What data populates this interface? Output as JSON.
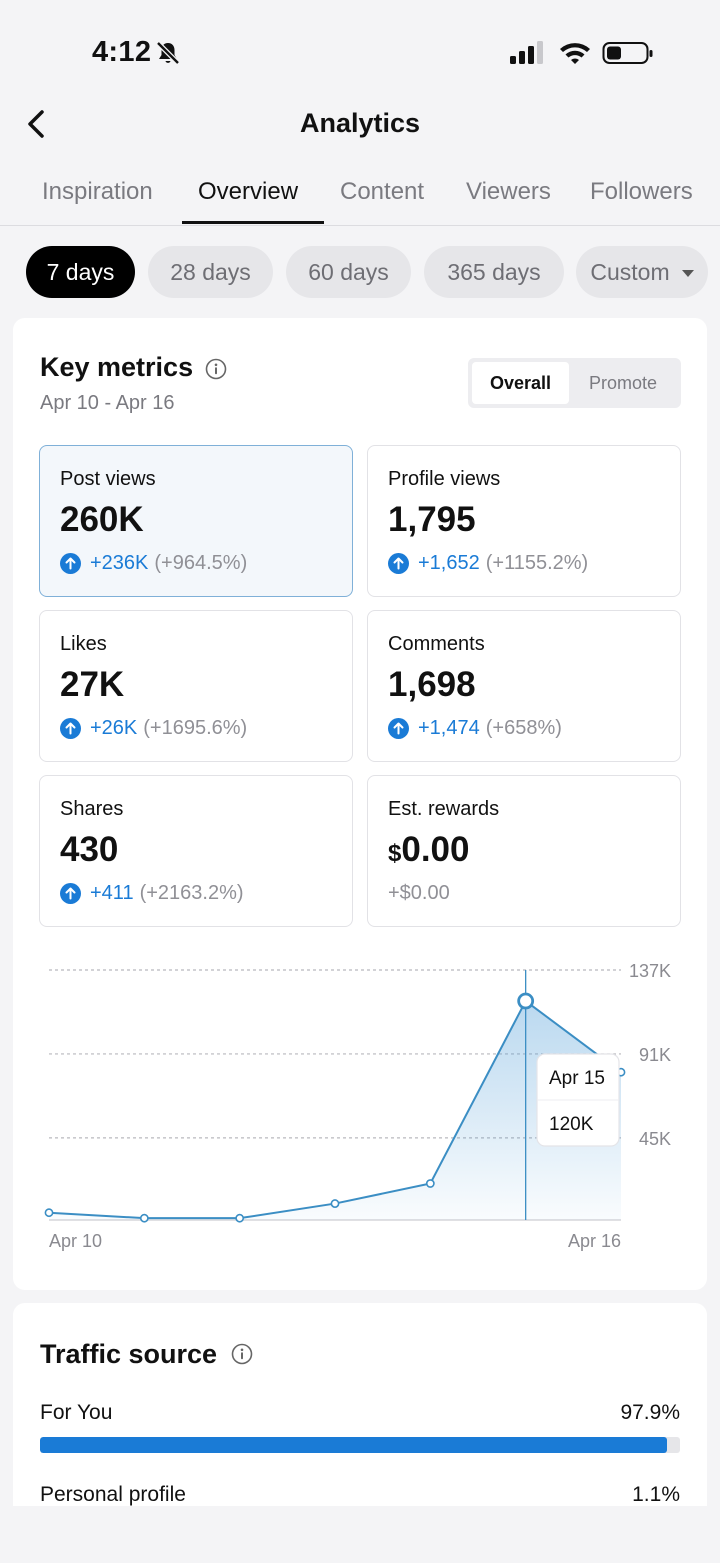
{
  "status": {
    "time": "4:12"
  },
  "nav": {
    "title": "Analytics"
  },
  "tabs": [
    "Inspiration",
    "Overview",
    "Content",
    "Viewers",
    "Followers"
  ],
  "active_tab": "Overview",
  "periods": [
    "7 days",
    "28 days",
    "60 days",
    "365 days",
    "Custom"
  ],
  "active_period": "7 days",
  "key_metrics": {
    "title": "Key metrics",
    "date_range": "Apr 10 - Apr 16",
    "toggle": {
      "overall": "Overall",
      "promote": "Promote"
    },
    "cards": {
      "post_views": {
        "label": "Post views",
        "value": "260K",
        "delta": "+236K",
        "pct": "(+964.5%)"
      },
      "profile_views": {
        "label": "Profile views",
        "value": "1,795",
        "delta": "+1,652",
        "pct": "(+1155.2%)"
      },
      "likes": {
        "label": "Likes",
        "value": "27K",
        "delta": "+26K",
        "pct": "(+1695.6%)"
      },
      "comments": {
        "label": "Comments",
        "value": "1,698",
        "delta": "+1,474",
        "pct": "(+658%)"
      },
      "shares": {
        "label": "Shares",
        "value": "430",
        "delta": "+411",
        "pct": "(+2163.2%)"
      },
      "rewards": {
        "label": "Est. rewards",
        "currency": "$",
        "value": "0.00",
        "delta": "+$0.00"
      }
    }
  },
  "chart_data": {
    "type": "area",
    "x": [
      "Apr 10",
      "Apr 11",
      "Apr 12",
      "Apr 13",
      "Apr 14",
      "Apr 15",
      "Apr 16"
    ],
    "series": [
      {
        "values": [
          4,
          1,
          1,
          9,
          20,
          120,
          81
        ]
      }
    ],
    "x_tick_labels": [
      "Apr 10",
      "Apr 16"
    ],
    "y_ticks": [
      {
        "value": 137,
        "label": "137K"
      },
      {
        "value": 91,
        "label": "91K"
      },
      {
        "value": 45,
        "label": "45K"
      }
    ],
    "ylim": [
      0,
      137
    ],
    "tooltip": {
      "date": "Apr 15",
      "value": "120K"
    },
    "line_color": "#3b8ec4"
  },
  "traffic_source": {
    "title": "Traffic source",
    "rows": [
      {
        "label": "For You",
        "value": "97.9%",
        "fraction": 0.979
      },
      {
        "label": "Personal profile",
        "value": "1.1%",
        "fraction": 0.011
      }
    ]
  },
  "colors": {
    "accent": "#1a7bd6",
    "background": "#f4f4f6"
  }
}
